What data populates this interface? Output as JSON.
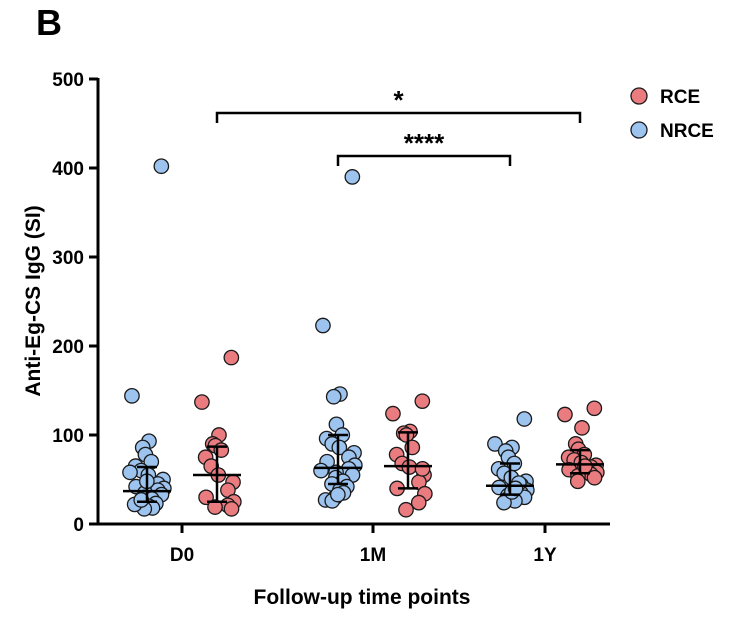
{
  "panel_label": "B",
  "chart_data": {
    "type": "scatter",
    "ylabel": "Anti-Eg-CS IgG (SI)",
    "xlabel": "Follow-up time points",
    "ylim": [
      0,
      500
    ],
    "yticks": [
      0,
      100,
      200,
      300,
      400,
      500
    ],
    "categories": [
      "D0",
      "1M",
      "1Y"
    ],
    "legend_position": "top-right",
    "series": [
      {
        "name": "NRCE",
        "color": "#9dc3ef",
        "points": {
          "D0": [
            402,
            144,
            93,
            86,
            78,
            70,
            65,
            60,
            55,
            50,
            45,
            42,
            40,
            38,
            35,
            33,
            30,
            28,
            25,
            23,
            20,
            18,
            17,
            22,
            27,
            48,
            58
          ],
          "1M": [
            390,
            223,
            146,
            143,
            112,
            100,
            96,
            90,
            86,
            80,
            75,
            70,
            66,
            62,
            58,
            55,
            52,
            48,
            45,
            42,
            38,
            35,
            30,
            27,
            26,
            33,
            60
          ],
          "1Y": [
            118,
            90,
            86,
            82,
            75,
            68,
            62,
            57,
            52,
            48,
            44,
            41,
            38,
            35,
            32,
            30,
            28,
            26,
            24,
            46,
            36,
            40
          ]
        },
        "median": {
          "D0": 37,
          "1M": 63,
          "1Y": 43
        },
        "iqr": {
          "D0": [
            25,
            64
          ],
          "1M": [
            45,
            100
          ],
          "1Y": [
            33,
            68
          ]
        }
      },
      {
        "name": "RCE",
        "color": "#ea7c80",
        "points": {
          "D0": [
            187,
            137,
            100,
            90,
            88,
            83,
            75,
            65,
            55,
            47,
            38,
            30,
            25,
            21,
            19,
            17
          ],
          "1M": [
            138,
            124,
            104,
            102,
            100,
            86,
            78,
            68,
            64,
            55,
            47,
            40,
            34,
            24,
            16,
            62
          ],
          "1Y": [
            130,
            123,
            108,
            90,
            84,
            78,
            75,
            72,
            69,
            66,
            64,
            61,
            58,
            56,
            54,
            52,
            48,
            65
          ]
        },
        "median": {
          "D0": 55,
          "1M": 65,
          "1Y": 67
        },
        "iqr": {
          "D0": [
            25,
            87
          ],
          "1M": [
            40,
            103
          ],
          "1Y": [
            57,
            83
          ]
        }
      }
    ],
    "annotations": [
      {
        "label": "*",
        "from": "D0 RCE",
        "to": "1Y RCE"
      },
      {
        "label": "****",
        "from": "1M NRCE",
        "to": "1Y NRCE"
      }
    ]
  }
}
